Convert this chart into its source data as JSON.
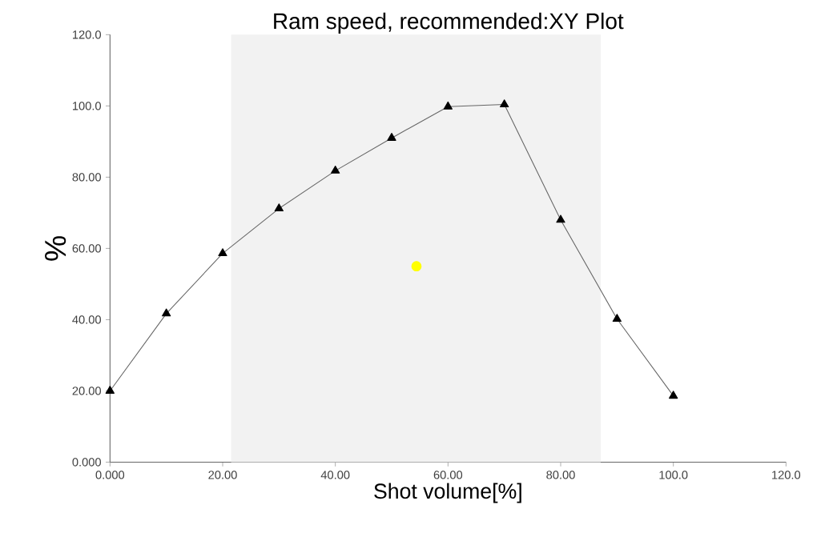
{
  "chart_data": {
    "type": "line",
    "title": "Ram speed, recommended:XY Plot",
    "xlabel": "Shot volume[%]",
    "ylabel": "%",
    "xlim": [
      0,
      120
    ],
    "ylim": [
      0,
      120
    ],
    "xticks": [
      {
        "value": 0,
        "label": "0.000"
      },
      {
        "value": 20,
        "label": "20.00"
      },
      {
        "value": 40,
        "label": "40.00"
      },
      {
        "value": 60,
        "label": "60.00"
      },
      {
        "value": 80,
        "label": "80.00"
      },
      {
        "value": 100,
        "label": "100.0"
      },
      {
        "value": 120,
        "label": "120.0"
      }
    ],
    "yticks": [
      {
        "value": 0,
        "label": "0.000"
      },
      {
        "value": 20,
        "label": "20.00"
      },
      {
        "value": 40,
        "label": "40.00"
      },
      {
        "value": 60,
        "label": "60.00"
      },
      {
        "value": 80,
        "label": "80.00"
      },
      {
        "value": 100,
        "label": "100.0"
      },
      {
        "value": 120,
        "label": "120.0"
      }
    ],
    "grid": false,
    "line_style": "solid",
    "bands": [
      {
        "axis": "x",
        "from": 21.5,
        "to": 87.1,
        "color": "#f2f2f2"
      }
    ],
    "series": [
      {
        "marker": "triangle",
        "color": "#000000",
        "x": [
          0,
          10,
          20,
          30,
          40,
          50,
          60,
          70,
          80,
          90,
          100
        ],
        "values": [
          20.0,
          41.7,
          58.6,
          71.2,
          81.8,
          91.0,
          99.8,
          100.4,
          68.0,
          40.2,
          18.6
        ]
      },
      {
        "type": "scatter",
        "marker": "circle",
        "color": "#ffff00",
        "x": [
          54.4
        ],
        "values": [
          55.0
        ]
      }
    ]
  }
}
